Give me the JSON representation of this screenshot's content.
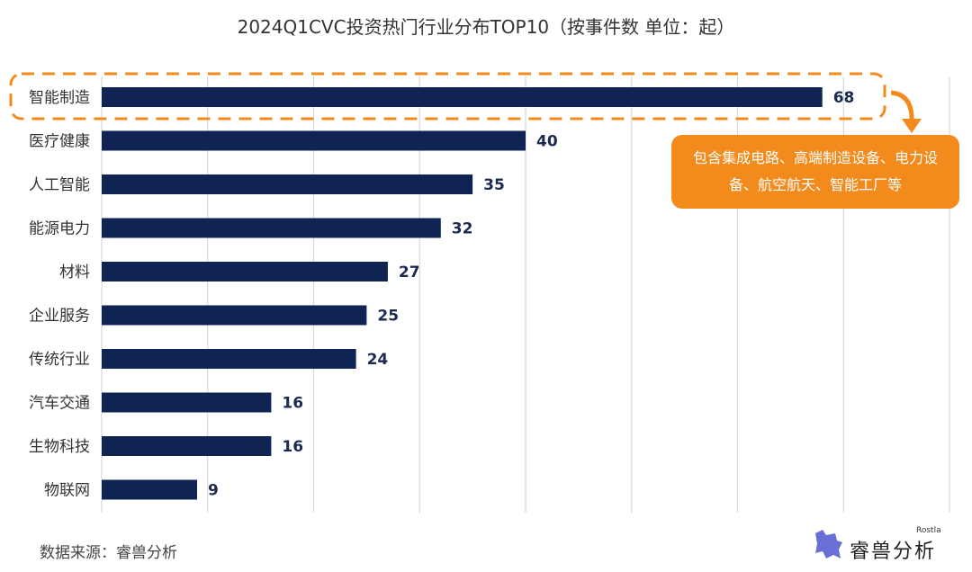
{
  "chart_data": {
    "type": "bar",
    "orientation": "horizontal",
    "title": "2024Q1CVC投资热门行业分布TOP10（按事件数 单位：起）",
    "categories": [
      "智能制造",
      "医疗健康",
      "人工智能",
      "能源电力",
      "材料",
      "企业服务",
      "传统行业",
      "汽车交通",
      "生物科技",
      "物联网"
    ],
    "values": [
      68,
      40,
      35,
      32,
      27,
      25,
      24,
      16,
      16,
      9
    ],
    "xlim": [
      0,
      80
    ],
    "grid": true,
    "bar_color": "#0f2453",
    "accent_color": "#f28a1c",
    "annotation": "包含集成电路、高端制造设备、电力设备、航空航天、智能工厂等"
  },
  "footer": {
    "source": "数据来源：睿兽分析"
  },
  "logo": {
    "name": "睿兽分析",
    "sub": "Rostla"
  }
}
